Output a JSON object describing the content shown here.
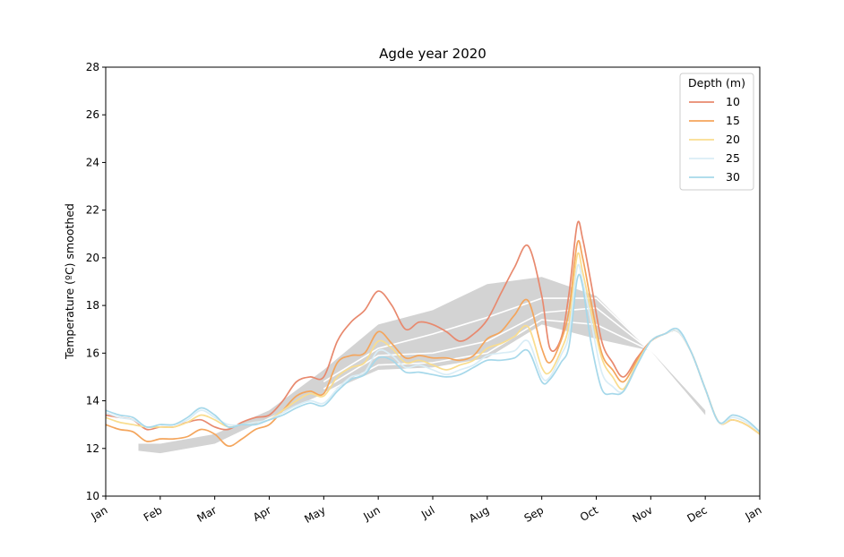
{
  "chart_data": {
    "type": "line",
    "title": "Agde year 2020",
    "xlabel": "",
    "ylabel": "Temperature (ºC) smoothed",
    "ylim": [
      10,
      28
    ],
    "yticks": [
      10,
      12,
      14,
      16,
      18,
      20,
      22,
      24,
      26,
      28
    ],
    "xlim": [
      0,
      12
    ],
    "xticks": [
      {
        "value": 0,
        "label": "Jan"
      },
      {
        "value": 1,
        "label": "Feb"
      },
      {
        "value": 2,
        "label": "Mar"
      },
      {
        "value": 3,
        "label": "Apr"
      },
      {
        "value": 4,
        "label": "May"
      },
      {
        "value": 5,
        "label": "Jun"
      },
      {
        "value": 6,
        "label": "Jul"
      },
      {
        "value": 7,
        "label": "Aug"
      },
      {
        "value": 8,
        "label": "Sep"
      },
      {
        "value": 9,
        "label": "Oct"
      },
      {
        "value": 10,
        "label": "Nov"
      },
      {
        "value": 11,
        "label": "Dec"
      },
      {
        "value": 12,
        "label": "Jan"
      }
    ],
    "x_unit": "month",
    "grid": false,
    "legend": {
      "title": "Depth (m)",
      "placement": "top-right"
    },
    "climatology_band": {
      "color": "#d3d3d3",
      "x": [
        0.6,
        1.0,
        2.0,
        3.0,
        4.0,
        5.0,
        6.0,
        7.0,
        8.0,
        9.0,
        10.0,
        11.0
      ],
      "upper": [
        12.2,
        12.2,
        12.6,
        13.6,
        15.3,
        17.2,
        17.8,
        18.9,
        19.2,
        18.4,
        16.1,
        13.6
      ],
      "lower": [
        11.9,
        11.8,
        12.2,
        13.3,
        14.3,
        15.3,
        15.4,
        15.8,
        17.2,
        16.6,
        16.1,
        13.4
      ]
    },
    "climatology_lines": [
      {
        "color": "#ffffff",
        "x": [
          4.0,
          5.0,
          6.0,
          7.0,
          8.0,
          9.0,
          10.0
        ],
        "values": [
          14.8,
          16.2,
          16.8,
          17.5,
          18.3,
          18.3,
          16.1
        ]
      },
      {
        "color": "#ffffff",
        "x": [
          4.0,
          5.0,
          6.0,
          7.0,
          8.0,
          9.0,
          10.0
        ],
        "values": [
          14.5,
          15.9,
          16.0,
          16.5,
          17.7,
          17.9,
          16.1
        ]
      },
      {
        "color": "#ffffff",
        "x": [
          4.0,
          5.0,
          6.0,
          7.0,
          8.0,
          9.0,
          10.0
        ],
        "values": [
          14.3,
          15.5,
          15.6,
          16.0,
          17.4,
          17.2,
          16.1
        ]
      }
    ],
    "x": [
      0,
      0.25,
      0.5,
      0.75,
      1,
      1.25,
      1.5,
      1.75,
      2,
      2.25,
      2.5,
      2.75,
      3,
      3.25,
      3.5,
      3.75,
      4,
      4.25,
      4.5,
      4.75,
      5,
      5.25,
      5.5,
      5.75,
      6,
      6.25,
      6.5,
      6.75,
      7,
      7.25,
      7.5,
      7.75,
      8,
      8.15,
      8.35,
      8.5,
      8.65,
      8.75,
      8.9,
      9.1,
      9.3,
      9.5,
      9.75,
      10,
      10.25,
      10.5,
      10.75,
      11,
      11.25,
      11.5,
      11.75,
      12
    ],
    "series": [
      {
        "name": "10",
        "color": "#e8896e",
        "values": [
          13.4,
          13.3,
          13.2,
          12.8,
          12.9,
          12.9,
          13.1,
          13.2,
          12.9,
          12.8,
          13.1,
          13.3,
          13.4,
          14.0,
          14.8,
          15.0,
          15.0,
          16.5,
          17.3,
          17.8,
          18.6,
          18.0,
          17.0,
          17.3,
          17.2,
          16.9,
          16.5,
          16.8,
          17.4,
          18.5,
          19.6,
          20.5,
          18.4,
          16.2,
          16.6,
          18.5,
          21.4,
          20.8,
          19.0,
          16.5,
          15.6,
          15.0,
          15.8,
          16.5,
          16.8,
          16.9,
          16.0,
          14.5,
          13.1,
          13.2,
          13.0,
          12.6
        ]
      },
      {
        "name": "15",
        "color": "#f4a55c",
        "values": [
          13.0,
          12.8,
          12.7,
          12.3,
          12.4,
          12.4,
          12.5,
          12.8,
          12.6,
          12.1,
          12.4,
          12.8,
          13.0,
          13.6,
          14.2,
          14.4,
          14.3,
          15.6,
          15.9,
          16.0,
          16.9,
          16.4,
          15.8,
          15.9,
          15.8,
          15.8,
          15.7,
          15.9,
          16.6,
          16.9,
          17.6,
          18.2,
          16.2,
          15.6,
          16.5,
          17.8,
          20.6,
          20.0,
          18.2,
          16.0,
          15.3,
          14.8,
          15.7,
          16.5,
          16.8,
          16.9,
          16.0,
          14.5,
          13.1,
          13.2,
          13.0,
          12.6
        ]
      },
      {
        "name": "20",
        "color": "#f9dd8f",
        "values": [
          13.3,
          13.1,
          13.0,
          12.9,
          12.9,
          12.9,
          13.1,
          13.4,
          13.2,
          12.9,
          13.0,
          13.1,
          13.2,
          13.6,
          14.0,
          14.3,
          14.2,
          15.0,
          15.4,
          15.6,
          16.5,
          16.2,
          15.6,
          15.7,
          15.5,
          15.3,
          15.5,
          15.7,
          16.2,
          16.4,
          16.7,
          17.1,
          15.4,
          15.2,
          16.1,
          17.2,
          20.1,
          19.4,
          17.8,
          15.8,
          15.0,
          14.5,
          15.6,
          16.5,
          16.8,
          16.9,
          16.0,
          14.5,
          13.1,
          13.2,
          13.0,
          12.6
        ]
      },
      {
        "name": "25",
        "color": "#d9edf6",
        "values": [
          13.5,
          13.3,
          13.2,
          12.9,
          13.0,
          13.0,
          13.2,
          13.6,
          13.3,
          13.0,
          13.0,
          13.1,
          13.2,
          13.5,
          13.8,
          14.0,
          13.9,
          14.5,
          15.0,
          15.2,
          16.1,
          15.9,
          15.4,
          15.5,
          15.3,
          15.1,
          15.3,
          15.5,
          15.9,
          16.0,
          16.1,
          16.5,
          15.0,
          15.0,
          15.9,
          16.8,
          19.6,
          19.0,
          17.4,
          15.2,
          14.6,
          14.4,
          15.5,
          16.5,
          16.8,
          16.9,
          16.0,
          14.5,
          13.1,
          13.3,
          13.1,
          12.7
        ]
      },
      {
        "name": "30",
        "color": "#a6d8ea",
        "values": [
          13.6,
          13.4,
          13.3,
          12.9,
          13.0,
          13.0,
          13.3,
          13.7,
          13.4,
          12.9,
          13.0,
          13.0,
          13.2,
          13.4,
          13.7,
          13.9,
          13.8,
          14.4,
          14.9,
          15.1,
          15.8,
          15.7,
          15.2,
          15.2,
          15.1,
          15.0,
          15.1,
          15.4,
          15.7,
          15.7,
          15.8,
          16.1,
          14.8,
          14.9,
          15.6,
          16.3,
          19.1,
          18.8,
          16.5,
          14.5,
          14.3,
          14.4,
          15.5,
          16.5,
          16.8,
          17.0,
          16.0,
          14.5,
          13.1,
          13.4,
          13.2,
          12.7
        ]
      }
    ]
  }
}
